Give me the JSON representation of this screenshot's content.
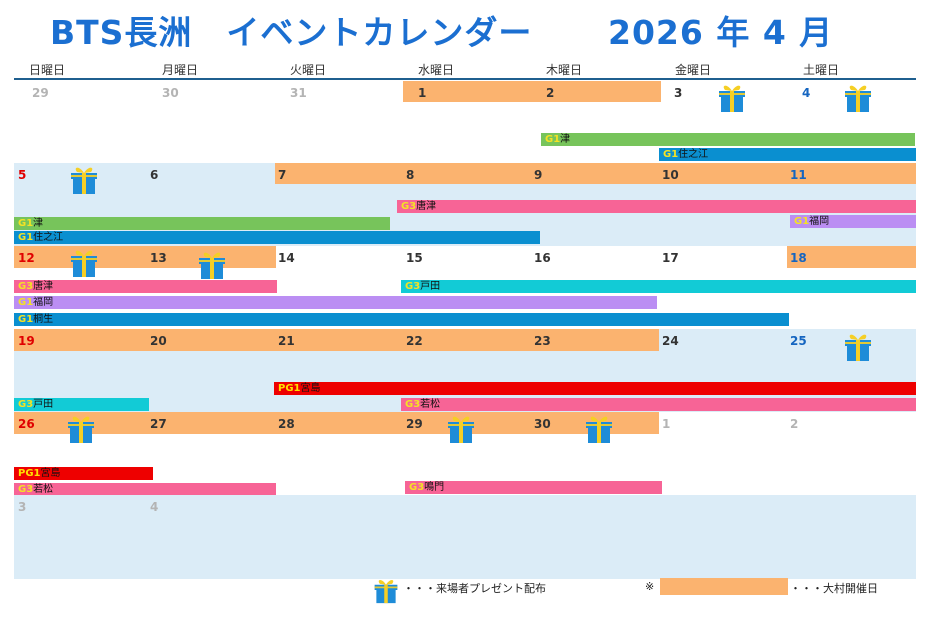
{
  "header": {
    "title_left": "BTS長洲　イベントカレンダー",
    "title_right": "2026 年 4 月"
  },
  "weekdays": [
    "日曜日",
    "月曜日",
    "火曜日",
    "水曜日",
    "木曜日",
    "金曜日",
    "土曜日"
  ],
  "weeks": [
    {
      "dates": [
        "29",
        "30",
        "31",
        "1",
        "2",
        "3",
        "4"
      ],
      "events": [
        {
          "grade": "G1",
          "venue": "津"
        },
        {
          "grade": "G1",
          "venue": "住之江"
        }
      ]
    },
    {
      "dates": [
        "5",
        "6",
        "7",
        "8",
        "9",
        "10",
        "11"
      ],
      "events": [
        {
          "grade": "G3",
          "venue": "唐津"
        },
        {
          "grade": "G1",
          "venue": "津"
        },
        {
          "grade": "G1",
          "venue": "福岡"
        },
        {
          "grade": "G1",
          "venue": "住之江"
        }
      ]
    },
    {
      "dates": [
        "12",
        "13",
        "14",
        "15",
        "16",
        "17",
        "18"
      ],
      "events": [
        {
          "grade": "G3",
          "venue": "唐津"
        },
        {
          "grade": "G3",
          "venue": "戸田"
        },
        {
          "grade": "G1",
          "venue": "福岡"
        },
        {
          "grade": "G1",
          "venue": "桐生"
        }
      ]
    },
    {
      "dates": [
        "19",
        "20",
        "21",
        "22",
        "23",
        "24",
        "25"
      ],
      "events": [
        {
          "grade": "PG1",
          "venue": "宮島"
        },
        {
          "grade": "G3",
          "venue": "戸田"
        },
        {
          "grade": "G3",
          "venue": "若松"
        }
      ]
    },
    {
      "dates": [
        "26",
        "27",
        "28",
        "29",
        "30",
        "1",
        "2"
      ],
      "events": [
        {
          "grade": "PG1",
          "venue": "宮島"
        },
        {
          "grade": "G3",
          "venue": "若松"
        },
        {
          "grade": "G3",
          "venue": "鳴門"
        }
      ]
    },
    {
      "dates": [
        "3",
        "4"
      ],
      "events": []
    }
  ],
  "legend": {
    "present": "・・・来場者プレゼント配布",
    "note_mark": "※",
    "omura": "・・・大村開催日"
  },
  "colors": {
    "omura_day": "#fbb36f",
    "week_bg": "#dbecf7",
    "G1_tsu": "#77c45b",
    "G1_suminoe": "#0a8fd0",
    "G3_karatsu": "#f76496",
    "G1_fukuoka": "#bb8ef3",
    "G3_toda": "#12cbd6",
    "G1_kiryu": "#0a8fd0",
    "PG1_miyajima": "#ee0000",
    "G3_wakamatsu": "#f76496",
    "G3_naruto": "#f76496",
    "gift": "#1e8cd8",
    "ribbon": "#f5cf25"
  }
}
